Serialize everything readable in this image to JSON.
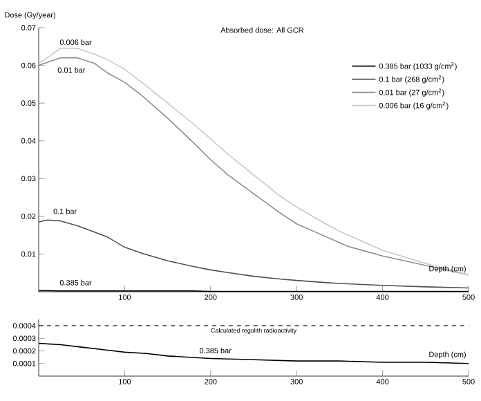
{
  "chart_data": [
    {
      "type": "line",
      "title": "Absorbed dose: All GCR",
      "xlabel": "Depth (cm)",
      "ylabel": "Dose (Gy/year)",
      "xlim": [
        0,
        500
      ],
      "ylim": [
        0,
        0.07
      ],
      "xticks": [
        100,
        200,
        300,
        400,
        500
      ],
      "yticks": [
        0.01,
        0.02,
        0.03,
        0.04,
        0.05,
        0.06,
        0.07
      ],
      "x": [
        0,
        10,
        25,
        45,
        65,
        80,
        100,
        120,
        150,
        180,
        200,
        220,
        250,
        280,
        300,
        330,
        350,
        360,
        400,
        450,
        500
      ],
      "series": [
        {
          "name": "0.385 bar  (1033 g/cm$^{2}$)",
          "color": "#000000",
          "values": [
            0.0003,
            0.0003,
            0.0002,
            0.0002,
            0.0002,
            0.0002,
            0.0002,
            0.0002,
            0.0002,
            0.0002,
            0.0001,
            0.0001,
            0.0001,
            0.0001,
            0.0001,
            0.0001,
            0.0001,
            0.0001,
            0.0001,
            0.0001,
            0.0001
          ]
        },
        {
          "name": "0.1 bar     (268 g/cm$^{2}$)",
          "color": "#505050",
          "values": [
            0.0185,
            0.019,
            0.0188,
            0.0175,
            0.0158,
            0.0145,
            0.0118,
            0.0102,
            0.0082,
            0.0067,
            0.0058,
            0.0051,
            0.0041,
            0.0034,
            0.003,
            0.0025,
            0.0022,
            0.0021,
            0.0017,
            0.0013,
            0.001
          ]
        },
        {
          "name": "0.01 bar     (27 g/cm$^{2}$)",
          "color": "#8c8c8c",
          "values": [
            0.06,
            0.0608,
            0.062,
            0.062,
            0.0605,
            0.058,
            0.0555,
            0.052,
            0.046,
            0.0395,
            0.035,
            0.031,
            0.026,
            0.021,
            0.018,
            0.015,
            0.013,
            0.012,
            0.0095,
            0.007,
            0.0045
          ]
        },
        {
          "name": "0.006 bar     (16 g/cm$^{2}$)",
          "color": "#c8c8c8",
          "values": [
            0.0605,
            0.062,
            0.0645,
            0.0645,
            0.063,
            0.0615,
            0.059,
            0.0555,
            0.05,
            0.0445,
            0.0405,
            0.0365,
            0.031,
            0.0255,
            0.0225,
            0.0185,
            0.016,
            0.015,
            0.011,
            0.0075,
            0.0045
          ]
        }
      ],
      "annotations": [
        "0.006 bar",
        "0.01 bar",
        "0.1 bar",
        "0.385 bar"
      ],
      "legend": "right",
      "marker": "none",
      "grid": false
    },
    {
      "type": "line",
      "xlabel": "Depth (cm)",
      "xlim": [
        0,
        500
      ],
      "ylim": [
        0,
        0.00045
      ],
      "xticks": [
        100,
        200,
        300,
        400,
        500
      ],
      "yticks": [
        0.0001,
        0.0002,
        0.0003,
        0.0004
      ],
      "x": [
        0,
        25,
        50,
        75,
        100,
        125,
        150,
        175,
        200,
        250,
        300,
        350,
        400,
        450,
        500
      ],
      "series": [
        {
          "color": "#000000",
          "values": [
            0.00026,
            0.00025,
            0.00023,
            0.00021,
            0.00019,
            0.00018,
            0.00016,
            0.00015,
            0.00014,
            0.00013,
            0.00012,
            0.00012,
            0.00011,
            0.00011,
            0.0001
          ]
        }
      ],
      "annotations": [
        "0.385 bar"
      ],
      "ref_lines": [
        {
          "axis": "y",
          "value": 0.0004,
          "label": "Calculated regolith radioactivity",
          "color": "#000000",
          "line_style": "dashed"
        }
      ],
      "marker": "none",
      "grid": false
    }
  ]
}
